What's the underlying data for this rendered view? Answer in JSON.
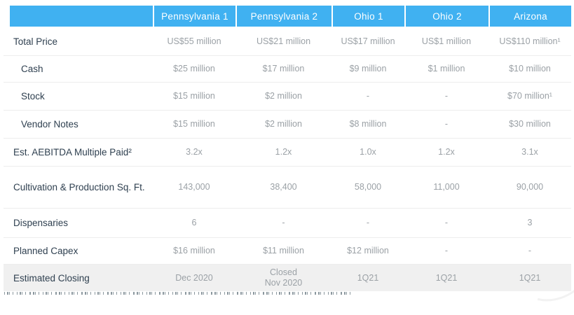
{
  "header": {
    "columns": [
      "Pennsylvania 1",
      "Pennsylvania 2",
      "Ohio 1",
      "Ohio 2",
      "Arizona"
    ]
  },
  "rows": [
    {
      "label": "Total Price",
      "indent": false,
      "values": [
        "US$55 million",
        "US$21 million",
        "US$17 million",
        "US$1 million",
        "US$110 million¹"
      ]
    },
    {
      "label": "Cash",
      "indent": true,
      "values": [
        "$25 million",
        "$17 million",
        "$9 million",
        "$1 million",
        "$10 million"
      ]
    },
    {
      "label": "Stock",
      "indent": true,
      "values": [
        "$15 million",
        "$2 million",
        "-",
        "-",
        "$70 million¹"
      ]
    },
    {
      "label": "Vendor Notes",
      "indent": true,
      "values": [
        "$15 million",
        "$2 million",
        "$8 million",
        "-",
        "$30 million"
      ]
    },
    {
      "label": "Est. AEBITDA Multiple Paid²",
      "indent": false,
      "values": [
        "3.2x",
        "1.2x",
        "1.0x",
        "1.2x",
        "3.1x"
      ]
    },
    {
      "label": "Cultivation & Production Sq. Ft.",
      "indent": false,
      "values": [
        "143,000",
        "38,400",
        "58,000",
        "11,000",
        "90,000"
      ]
    },
    {
      "label": "Dispensaries",
      "indent": false,
      "values": [
        "6",
        "-",
        "-",
        "-",
        "3"
      ]
    },
    {
      "label": "Planned Capex",
      "indent": false,
      "values": [
        "$16 million",
        "$11 million",
        "$12 million",
        "-",
        "-"
      ]
    },
    {
      "label": "Estimated Closing",
      "indent": false,
      "highlight": true,
      "values": [
        "Dec 2020",
        "Closed\nNov 2020",
        "1Q21",
        "1Q21",
        "1Q21"
      ]
    }
  ],
  "colors": {
    "header_blue": "#40B1F1",
    "header_text": "#FFFFFF",
    "label_text": "#2F4050",
    "value_text": "#9BA1A6",
    "row_divider": "#EDEDED",
    "highlight_row_bg": "#F0F0F0"
  }
}
